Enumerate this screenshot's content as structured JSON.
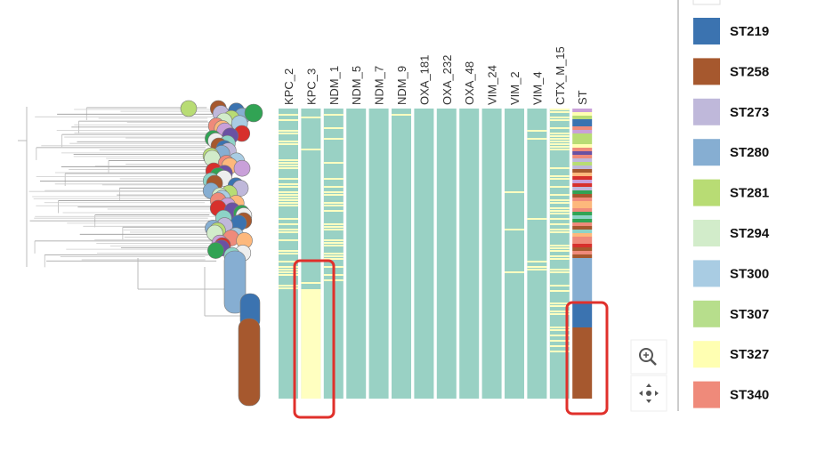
{
  "columns": [
    "KPC_2",
    "KPC_3",
    "NDM_1",
    "NDM_5",
    "NDM_7",
    "NDM_9",
    "OXA_181",
    "OXA_232",
    "OXA_48",
    "VIM_24",
    "VIM_2",
    "VIM_4",
    "CTX_M_15",
    "ST"
  ],
  "legend": [
    {
      "label": "ST219",
      "color": "#3b73b0"
    },
    {
      "label": "ST258",
      "color": "#a6582e"
    },
    {
      "label": "ST273",
      "color": "#bfb8da"
    },
    {
      "label": "ST280",
      "color": "#86aed2"
    },
    {
      "label": "ST281",
      "color": "#b8dc74"
    },
    {
      "label": "ST294",
      "color": "#d2ecca"
    },
    {
      "label": "ST300",
      "color": "#a9cce3"
    },
    {
      "label": "ST307",
      "color": "#b7de8c"
    },
    {
      "label": "ST327",
      "color": "#ffffb2"
    },
    {
      "label": "ST340",
      "color": "#ef8a7a"
    }
  ]
}
